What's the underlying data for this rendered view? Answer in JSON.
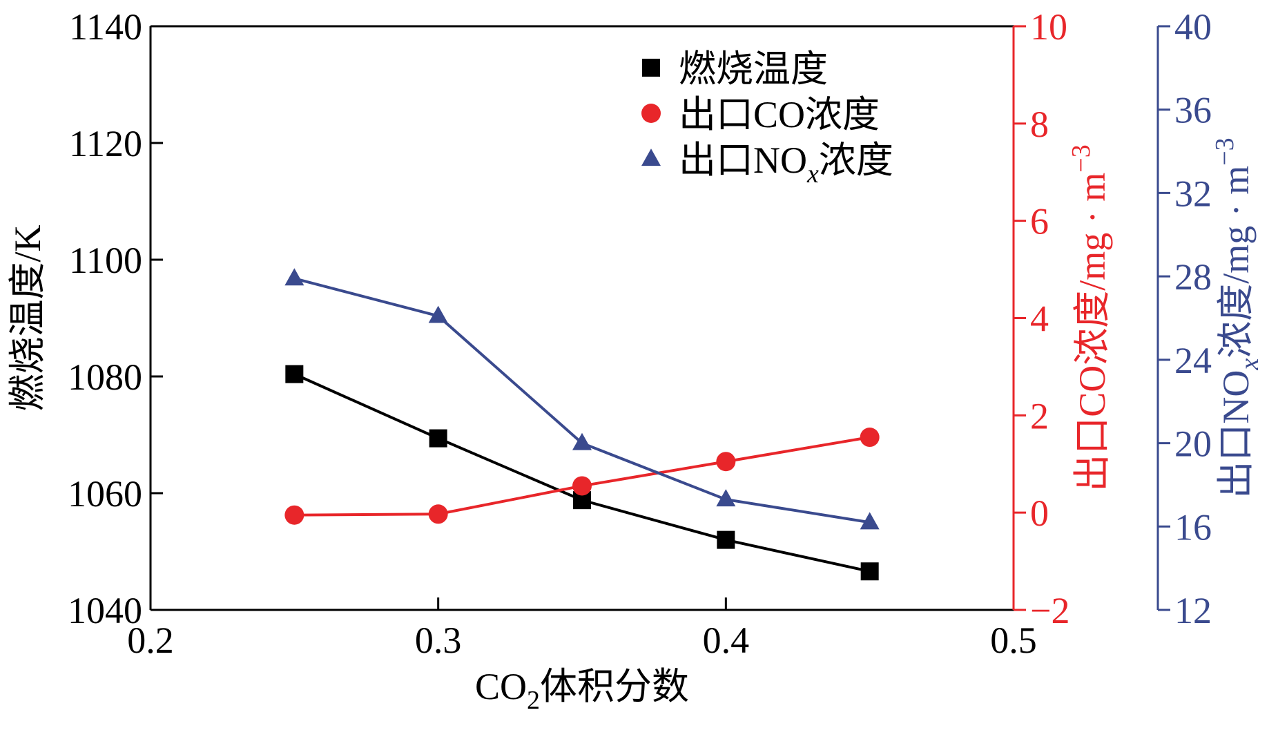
{
  "chart_data": {
    "type": "line",
    "x": [
      0.25,
      0.3,
      0.35,
      0.4,
      0.45
    ],
    "xlim": [
      0.2,
      0.5
    ],
    "xticks": [
      0.2,
      0.3,
      0.4,
      0.5
    ],
    "xtick_labels": [
      "0.2",
      "0.3",
      "0.4",
      "0.5"
    ],
    "xlabel": {
      "prefix": "CO",
      "sub": "2",
      "suffix": "体积分数"
    },
    "axes": {
      "left": {
        "ylim": [
          1040,
          1140
        ],
        "ticks": [
          1040,
          1060,
          1080,
          1100,
          1120,
          1140
        ],
        "tick_labels": [
          "1040",
          "1060",
          "1080",
          "1100",
          "1120",
          "1140"
        ],
        "label": "燃烧温度/K",
        "color": "#000000"
      },
      "right1": {
        "ylim": [
          -2,
          10
        ],
        "ticks": [
          -2,
          0,
          2,
          4,
          6,
          8,
          10
        ],
        "tick_labels": [
          "−2",
          "0",
          "2",
          "4",
          "6",
          "8",
          "10"
        ],
        "label": {
          "main": "出口CO浓度/mg · m",
          "sup": "−3"
        },
        "color": "#e8262a"
      },
      "right2": {
        "ylim": [
          12,
          40
        ],
        "ticks": [
          12,
          16,
          20,
          24,
          28,
          32,
          36,
          40
        ],
        "tick_labels": [
          "12",
          "16",
          "20",
          "24",
          "28",
          "32",
          "36",
          "40"
        ],
        "label": {
          "pre": "出口NO",
          "sub": "x",
          "post": "浓度/mg · m",
          "sup": "−3"
        },
        "color": "#3a4a8e"
      }
    },
    "series": [
      {
        "name": "燃烧温度",
        "legend": {
          "text": "燃烧温度"
        },
        "axis": "left",
        "marker": "square",
        "color": "#000000",
        "values": [
          1080.4,
          1069.4,
          1058.8,
          1052.0,
          1046.6
        ]
      },
      {
        "name": "出口CO浓度",
        "legend": {
          "text": "出口CO浓度"
        },
        "axis": "right1",
        "marker": "circle",
        "color": "#e8262a",
        "values": [
          -0.05,
          -0.03,
          0.55,
          1.05,
          1.55
        ]
      },
      {
        "name": "出口NOx浓度",
        "legend": {
          "pre": "出口NO",
          "sub": "x",
          "post": "浓度"
        },
        "axis": "right2",
        "marker": "triangle",
        "color": "#3a4a8e",
        "values": [
          27.9,
          26.1,
          20.0,
          17.3,
          16.2
        ]
      }
    ],
    "legend_position": "top-right"
  }
}
